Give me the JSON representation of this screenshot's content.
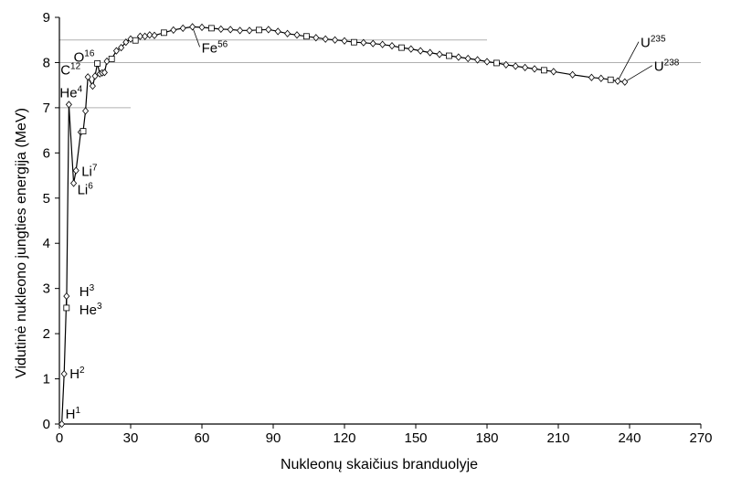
{
  "chart_data": {
    "type": "line",
    "xlabel": "Nukleonų skaičius branduolyje",
    "ylabel": "Vidutinė nukleono jungties energija (MeV)",
    "xlim": [
      0,
      270
    ],
    "ylim": [
      0,
      9
    ],
    "xticks": [
      "0",
      "30",
      "60",
      "90",
      "120",
      "150",
      "180",
      "210",
      "240",
      "270"
    ],
    "yticks": [
      "0",
      "1",
      "2",
      "3",
      "4",
      "5",
      "6",
      "7",
      "8",
      "9"
    ],
    "reference_lines": [
      {
        "y": 8.5,
        "x_end": 180
      },
      {
        "y": 8.0,
        "x_end": 270
      },
      {
        "y": 7.0,
        "x_end": 30
      }
    ],
    "series": [
      {
        "x": [
          1,
          2,
          3,
          3,
          4,
          6,
          7,
          9,
          10,
          11,
          12,
          14,
          15,
          16,
          17,
          18,
          19,
          20,
          22,
          24,
          26,
          28,
          30,
          32,
          34,
          36,
          38,
          40,
          44,
          48,
          52,
          56,
          60,
          64,
          68,
          72,
          76,
          80,
          84,
          88,
          92,
          96,
          100,
          104,
          108,
          112,
          116,
          120,
          124,
          128,
          132,
          136,
          140,
          144,
          148,
          152,
          156,
          160,
          164,
          168,
          172,
          176,
          180,
          184,
          188,
          192,
          196,
          200,
          204,
          208,
          216,
          224,
          228,
          232,
          235,
          238
        ],
        "y": [
          0.0,
          1.11,
          2.83,
          2.57,
          7.07,
          5.33,
          5.61,
          6.46,
          6.48,
          6.93,
          7.68,
          7.48,
          7.7,
          7.98,
          7.75,
          7.77,
          7.78,
          8.03,
          8.08,
          8.26,
          8.33,
          8.45,
          8.52,
          8.49,
          8.58,
          8.58,
          8.61,
          8.6,
          8.66,
          8.72,
          8.76,
          8.79,
          8.78,
          8.76,
          8.74,
          8.73,
          8.71,
          8.71,
          8.72,
          8.73,
          8.69,
          8.64,
          8.61,
          8.58,
          8.55,
          8.52,
          8.5,
          8.48,
          8.45,
          8.44,
          8.42,
          8.4,
          8.37,
          8.33,
          8.3,
          8.26,
          8.22,
          8.18,
          8.15,
          8.12,
          8.09,
          8.06,
          8.02,
          7.99,
          7.95,
          7.92,
          7.89,
          7.86,
          7.83,
          7.8,
          7.73,
          7.67,
          7.65,
          7.62,
          7.59,
          7.57
        ]
      }
    ],
    "annotations": [
      {
        "base": "H",
        "sup": "1",
        "x": 1,
        "y": 0.0
      },
      {
        "base": "H",
        "sup": "2",
        "x": 2,
        "y": 1.11
      },
      {
        "base": "H",
        "sup": "3",
        "x": 3,
        "y": 2.83
      },
      {
        "base": "He",
        "sup": "3",
        "x": 3,
        "y": 2.57
      },
      {
        "base": "He",
        "sup": "4",
        "x": 4,
        "y": 7.07
      },
      {
        "base": "Li",
        "sup": "6",
        "x": 6,
        "y": 5.33
      },
      {
        "base": "Li",
        "sup": "7",
        "x": 7,
        "y": 5.61
      },
      {
        "base": "C",
        "sup": "12",
        "x": 12,
        "y": 7.68
      },
      {
        "base": "O",
        "sup": "16",
        "x": 16,
        "y": 7.98
      },
      {
        "base": "Fe",
        "sup": "56",
        "x": 56,
        "y": 8.79
      },
      {
        "base": "U",
        "sup": "235",
        "x": 235,
        "y": 7.59
      },
      {
        "base": "U",
        "sup": "238",
        "x": 238,
        "y": 7.57
      }
    ],
    "grid": false,
    "legend": "none"
  }
}
